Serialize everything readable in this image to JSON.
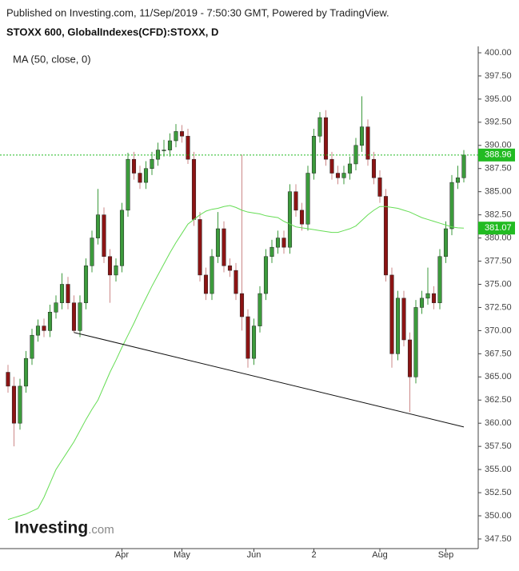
{
  "chart_data": {
    "type": "candlestick",
    "header": "Published on Investing.com, 11/Sep/2019 - 7:50:30 GMT, Powered by TradingView.",
    "title": "STOXX 600, GlobalIndexes(CFD):STOXX, D",
    "logo": {
      "name": "Investing",
      "suffix": ".com"
    },
    "categories": [
      null,
      null,
      null,
      null,
      null,
      null,
      null,
      null,
      null,
      null,
      null,
      null,
      null,
      null,
      null,
      null,
      null,
      null,
      null,
      "Apr",
      null,
      null,
      null,
      null,
      null,
      null,
      null,
      null,
      null,
      "May",
      null,
      null,
      null,
      null,
      null,
      null,
      null,
      null,
      null,
      null,
      null,
      "Jun",
      null,
      null,
      null,
      null,
      null,
      null,
      null,
      null,
      null,
      "2",
      null,
      null,
      null,
      null,
      null,
      null,
      null,
      null,
      null,
      null,
      "Aug",
      null,
      null,
      null,
      null,
      null,
      null,
      null,
      null,
      null,
      null,
      "Sep",
      null,
      null,
      null
    ],
    "up_color": "#3c9a3c",
    "down_color": "#8b1414",
    "open": [
      365.5,
      364,
      360,
      364,
      367,
      369.5,
      370.5,
      370,
      372,
      373,
      375,
      373,
      370,
      373,
      377,
      380,
      382.5,
      378,
      376,
      377,
      383,
      388.5,
      387,
      386,
      387.5,
      388.5,
      389.5,
      389.5,
      390.5,
      391.5,
      391,
      388.5,
      382,
      376,
      374,
      378,
      381,
      377,
      376.5,
      374,
      371.5,
      367,
      370.5,
      374,
      378,
      379,
      380,
      379,
      385,
      383,
      381.5,
      387,
      391,
      393,
      388.5,
      387,
      386.5,
      387,
      388,
      390,
      392,
      388.5,
      386.5,
      384.5,
      376,
      367.5,
      373.5,
      369,
      365,
      372.5,
      373.5,
      374,
      373,
      378,
      381,
      386,
      386.5
    ],
    "high": [
      366.3,
      365,
      364.8,
      367.8,
      370.2,
      371.2,
      371.3,
      372.8,
      373.8,
      376.2,
      375.8,
      373.8,
      373.8,
      377.8,
      380.8,
      385.3,
      383.3,
      378.8,
      377.8,
      383.8,
      389.2,
      389.3,
      387.8,
      388.3,
      389.3,
      390.3,
      390.6,
      391.3,
      392.3,
      392.2,
      391.8,
      389.3,
      382.8,
      376.8,
      378.8,
      382.8,
      381.8,
      377.8,
      377.3,
      389,
      372.3,
      371.3,
      374.8,
      378.8,
      379.8,
      380.8,
      380.8,
      385.8,
      385.8,
      383.8,
      387.8,
      391.8,
      393.6,
      393.8,
      389.3,
      387.8,
      387.8,
      388.8,
      390.8,
      395.3,
      392.8,
      389.3,
      387.3,
      385.3,
      376.8,
      374.3,
      374.3,
      369.8,
      373.3,
      374.3,
      376.8,
      374.8,
      378.8,
      381.8,
      386.8,
      387.8,
      389.5
    ],
    "low": [
      363.3,
      357.5,
      359.3,
      363.3,
      366.3,
      368.8,
      369.3,
      369.3,
      371.3,
      372.3,
      372.3,
      369.8,
      369.3,
      372.3,
      376.3,
      379.3,
      377.3,
      373,
      375.3,
      376.3,
      382.3,
      386.3,
      385.3,
      385.3,
      386.8,
      387.8,
      388.8,
      388.8,
      389.8,
      390.3,
      388,
      381.3,
      375.3,
      373.3,
      373.3,
      377.3,
      376.3,
      375.8,
      373.3,
      370,
      366,
      366.3,
      369.8,
      373.3,
      377.3,
      378.3,
      378.3,
      378.3,
      382.3,
      380.8,
      380.8,
      386.3,
      390.3,
      387.8,
      386.3,
      385.8,
      385.8,
      386.3,
      387.3,
      389.3,
      387.8,
      385.8,
      383.8,
      375.3,
      366,
      366.8,
      368.3,
      361.2,
      364.3,
      371.8,
      372.8,
      372.3,
      372.3,
      377.3,
      380.3,
      385.3,
      386
    ],
    "close": [
      364,
      360,
      364,
      367,
      369.5,
      370.5,
      370,
      372,
      373,
      375,
      373,
      370,
      373,
      377,
      380,
      382.5,
      378,
      376,
      377,
      383,
      388.5,
      387,
      386,
      387.5,
      388.5,
      389.5,
      389.5,
      390.5,
      391.5,
      391,
      388.5,
      382,
      376,
      374,
      378,
      381,
      377,
      376.5,
      374,
      371.5,
      367,
      370.5,
      374,
      378,
      379,
      380,
      379,
      385,
      383,
      381.5,
      387,
      391,
      393,
      388.5,
      387,
      386.5,
      387,
      388,
      390,
      392,
      388.5,
      386.5,
      384.5,
      376,
      367.5,
      373.5,
      369,
      365,
      372.5,
      373.5,
      374,
      373,
      378,
      381,
      386,
      386.5,
      388.96
    ],
    "ma": {
      "name": "MA (50, close, 0)",
      "color": "#66dd55",
      "values": [
        349.6,
        349.8,
        350,
        350.2,
        350.5,
        350.8,
        352,
        353.5,
        355,
        356,
        357,
        358,
        359.2,
        360.4,
        361.5,
        362.5,
        364,
        365.5,
        366.8,
        368.2,
        369.5,
        370.8,
        372.2,
        373.5,
        374.8,
        376,
        377.2,
        378.4,
        379.5,
        380.5,
        381.5,
        382,
        382.5,
        382.9,
        383.1,
        383.2,
        383.4,
        383.5,
        383.3,
        383,
        382.8,
        382.7,
        382.6,
        382.4,
        382.3,
        382.2,
        381.8,
        381.5,
        381.2,
        381.1,
        381,
        380.9,
        380.8,
        380.7,
        380.6,
        380.6,
        380.8,
        381,
        381.3,
        381.9,
        382.5,
        383,
        383.4,
        383.4,
        383.3,
        383.2,
        383,
        382.8,
        382.5,
        382.2,
        382,
        381.8,
        381.6,
        381.4,
        381.2,
        381.1,
        381.07
      ]
    },
    "trendline": [
      null,
      null,
      null,
      null,
      null,
      null,
      null,
      null,
      null,
      null,
      null,
      369.8,
      null,
      null,
      null,
      null,
      null,
      null,
      null,
      null,
      null,
      null,
      null,
      null,
      null,
      null,
      null,
      null,
      null,
      null,
      null,
      null,
      null,
      null,
      null,
      null,
      null,
      null,
      null,
      null,
      null,
      null,
      null,
      null,
      null,
      null,
      null,
      null,
      null,
      null,
      null,
      null,
      null,
      null,
      null,
      null,
      null,
      null,
      null,
      null,
      null,
      null,
      null,
      null,
      null,
      null,
      null,
      null,
      null,
      null,
      null,
      null,
      null,
      null,
      null,
      null,
      359.6
    ],
    "last_price_color": "#22bb22",
    "ylim": [
      346.46,
      400.69
    ],
    "yticks": [
      {
        "value": 347.5,
        "label": "347.50"
      },
      {
        "value": 350,
        "label": "350.00"
      },
      {
        "value": 352.5,
        "label": "352.50"
      },
      {
        "value": 355,
        "label": "355.00"
      },
      {
        "value": 357.5,
        "label": "357.50"
      },
      {
        "value": 360,
        "label": "360.00"
      },
      {
        "value": 362.5,
        "label": "362.50"
      },
      {
        "value": 365,
        "label": "365.00"
      },
      {
        "value": 367.5,
        "label": "367.50"
      },
      {
        "value": 370,
        "label": "370.00"
      },
      {
        "value": 372.5,
        "label": "372.50"
      },
      {
        "value": 375,
        "label": "375.00"
      },
      {
        "value": 377.5,
        "label": "377.50"
      },
      {
        "value": 380,
        "label": "380.00"
      },
      {
        "value": 382.5,
        "label": "382.50"
      },
      {
        "value": 385,
        "label": "385.00"
      },
      {
        "value": 387.5,
        "label": "387.50"
      },
      {
        "value": 390,
        "label": "390.00"
      },
      {
        "value": 392.5,
        "label": "392.50"
      },
      {
        "value": 395,
        "label": "395.00"
      },
      {
        "value": 397.5,
        "label": "397.50"
      },
      {
        "value": 400,
        "label": "400.00"
      }
    ]
  }
}
